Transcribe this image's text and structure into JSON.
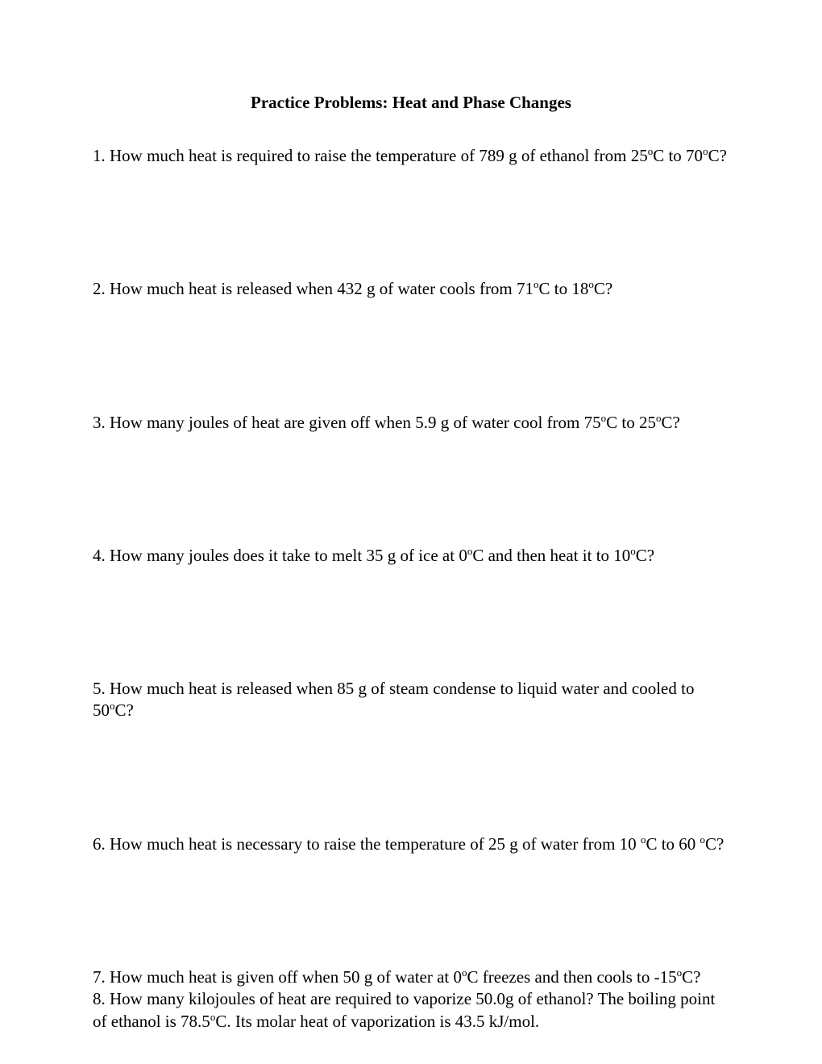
{
  "title": "Practice Problems:  Heat and Phase Changes",
  "problems": [
    "1. How much heat is required to raise the temperature of 789 g of ethanol from 25°C to 70°C?",
    "2. How much heat is released when 432 g of water cools from 71°C to 18°C?",
    "3. How many joules of heat are given off when 5.9 g of water cool from 75°C to 25°C?",
    "4. How many joules does it take to melt 35 g of ice at 0°C and then heat it to 10°C?",
    "5. How much heat is released when 85 g of steam condense to liquid water and cooled to 50°C?",
    "6. How much heat is necessary to raise the temperature of 25 g of water from 10 °C to 60 °C?",
    "7. How much heat is given off when 50 g of water at 0°C freezes and then cools to -15°C?",
    "8. How many kilojoules of heat are required to vaporize 50.0g of ethanol?  The boiling point of ethanol is 78.5°C.  Its molar heat of vaporization is 43.5 kJ/mol."
  ],
  "text_color": "#000000",
  "background_color": "#ffffff",
  "title_fontsize": 21,
  "body_fontsize": 21
}
